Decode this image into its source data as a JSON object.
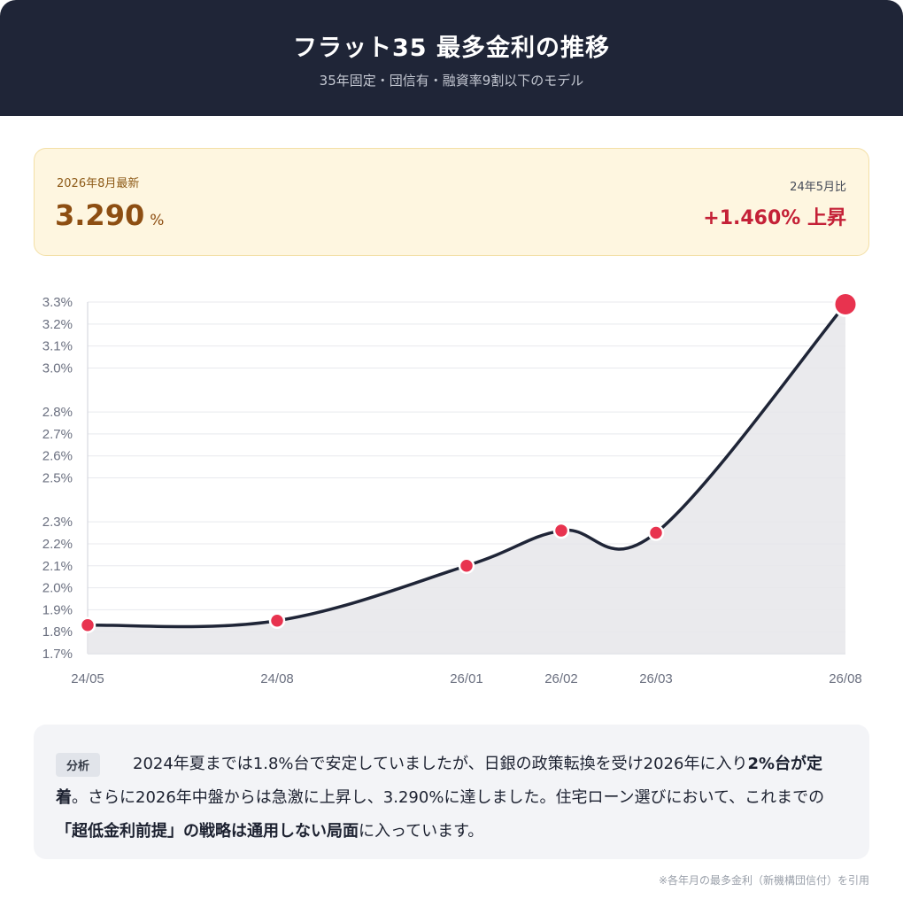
{
  "header": {
    "title": "フラット35 最多金利の推移",
    "subtitle": "35年固定・団信有・融資率9割以下のモデル"
  },
  "summary": {
    "latest_label": "2026年8月最新",
    "latest_value": "3.290",
    "latest_unit": "%",
    "compare_label": "24年5月比",
    "compare_value": "+1.460% 上昇"
  },
  "colors": {
    "header_bg": "#1f2537",
    "line": "#1f2537",
    "marker": "#e8334f",
    "area": "#e6e6ea",
    "up": "#c42137"
  },
  "chart_data": {
    "type": "area",
    "x": [
      "24/05",
      "24/08",
      "26/01",
      "26/02",
      "26/03",
      "26/08"
    ],
    "series": [
      {
        "values": [
          1.83,
          1.85,
          2.1,
          2.26,
          2.25,
          3.29
        ]
      }
    ],
    "y_ticks": [
      "1.7%",
      "1.8%",
      "1.9%",
      "2.0%",
      "2.1%",
      "2.2%",
      "2.3%",
      "2.5%",
      "2.6%",
      "2.7%",
      "2.8%",
      "3.0%",
      "3.1%",
      "3.2%",
      "3.3%"
    ],
    "ylim": [
      1.7,
      3.3
    ],
    "grid": true,
    "legend": "none"
  },
  "analysis": {
    "tag": "分析",
    "text_1": "2024年夏までは1.8%台で安定していましたが、日銀の政策転換を受け2026年に入り",
    "text_bold_1": "2%台が定着",
    "text_2": "。さらに2026年中盤からは急激に上昇し、3.290%に達しました。住宅ローン選びにおいて、これまでの",
    "text_bold_2": "「超低金利前提」の戦略は通用しない局面",
    "text_3": "に入っています。"
  },
  "footnote": "※各年月の最多金利（新機構団信付）を引用"
}
